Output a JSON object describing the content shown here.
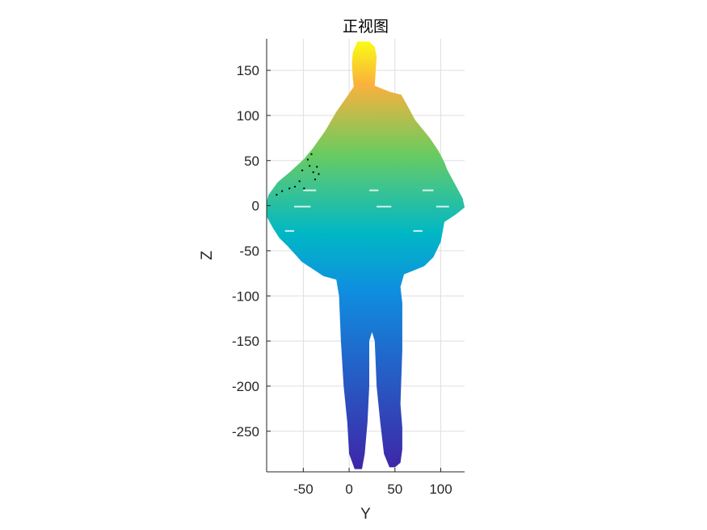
{
  "chart_data": {
    "type": "scatter",
    "title": "正视图",
    "xlabel": "Y",
    "ylabel": "Z",
    "xlim": [
      -90,
      126
    ],
    "ylim": [
      -295,
      185
    ],
    "xticks": [
      -50,
      0,
      50,
      100
    ],
    "xtick_labels": [
      "-50",
      "0",
      "50",
      "100"
    ],
    "yticks": [
      150,
      100,
      50,
      0,
      -50,
      -100,
      -150,
      -200,
      -250
    ],
    "ytick_labels": [
      "150",
      "100",
      "50",
      "0",
      "-50",
      "-100",
      "-150",
      "-200",
      "-250"
    ],
    "grid": true,
    "colormap": "parula",
    "color_by": "Z",
    "colors": {
      "low": "#3e26a8",
      "mid": "#00b7c5",
      "midhigh": "#6ccb5f",
      "high": "#fbb13c",
      "top": "#f9fb15",
      "axis": "#262626",
      "grid": "#dfdfdf",
      "stray_points": "#000000"
    },
    "silhouette_outline": [
      [
        9,
        182
      ],
      [
        22,
        182
      ],
      [
        28,
        176
      ],
      [
        30,
        165
      ],
      [
        29,
        150
      ],
      [
        28,
        133
      ],
      [
        45,
        126
      ],
      [
        57,
        123
      ],
      [
        63,
        112
      ],
      [
        72,
        95
      ],
      [
        88,
        75
      ],
      [
        98,
        60
      ],
      [
        104,
        48
      ],
      [
        107,
        40
      ],
      [
        115,
        25
      ],
      [
        124,
        8
      ],
      [
        126,
        -2
      ],
      [
        116,
        -10
      ],
      [
        104,
        -18
      ],
      [
        100,
        -40
      ],
      [
        92,
        -57
      ],
      [
        82,
        -67
      ],
      [
        70,
        -72
      ],
      [
        60,
        -76
      ],
      [
        56,
        -90
      ],
      [
        58,
        -108
      ],
      [
        58,
        -160
      ],
      [
        56,
        -220
      ],
      [
        58,
        -246
      ],
      [
        58,
        -270
      ],
      [
        56,
        -285
      ],
      [
        50,
        -290
      ],
      [
        44,
        -290
      ],
      [
        38,
        -275
      ],
      [
        34,
        -240
      ],
      [
        30,
        -200
      ],
      [
        28,
        -150
      ],
      [
        25,
        -140
      ],
      [
        22,
        -150
      ],
      [
        22,
        -200
      ],
      [
        20,
        -240
      ],
      [
        17,
        -275
      ],
      [
        14,
        -292
      ],
      [
        6,
        -292
      ],
      [
        0,
        -275
      ],
      [
        -2,
        -240
      ],
      [
        -6,
        -200
      ],
      [
        -9,
        -150
      ],
      [
        -11,
        -100
      ],
      [
        -14,
        -82
      ],
      [
        -28,
        -78
      ],
      [
        -40,
        -70
      ],
      [
        -52,
        -62
      ],
      [
        -58,
        -55
      ],
      [
        -67,
        -45
      ],
      [
        -76,
        -36
      ],
      [
        -83,
        -25
      ],
      [
        -90,
        -12
      ],
      [
        -90,
        4
      ],
      [
        -88,
        12
      ],
      [
        -78,
        26
      ],
      [
        -64,
        38
      ],
      [
        -50,
        51
      ],
      [
        -40,
        63
      ],
      [
        -26,
        83
      ],
      [
        -14,
        104
      ],
      [
        -3,
        120
      ],
      [
        5,
        132
      ],
      [
        4,
        142
      ],
      [
        3,
        158
      ],
      [
        4,
        170
      ]
    ]
  }
}
